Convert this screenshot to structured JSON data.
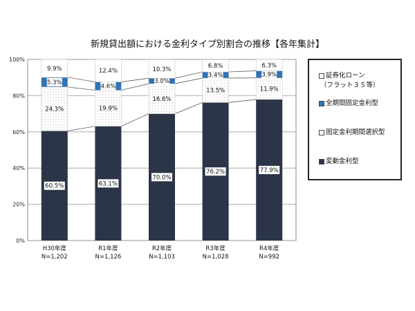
{
  "chart_data": {
    "type": "bar",
    "stacked": true,
    "title": "新規貸出額における金利タイプ別割合の推移【各年集計】",
    "categories": [
      [
        "H30年度",
        "N=1,202"
      ],
      [
        "R1年度",
        "N=1,126"
      ],
      [
        "R2年度",
        "N=1,103"
      ],
      [
        "R3年度",
        "N=1,028"
      ],
      [
        "R4年度",
        "N=992"
      ]
    ],
    "ylim": [
      0,
      100
    ],
    "yticks": [
      "0%",
      "20%",
      "40%",
      "60%",
      "80%",
      "100%"
    ],
    "grid": true,
    "legend_position": "right",
    "series": [
      {
        "name": "変動金利型",
        "values": [
          60.5,
          63.1,
          70.0,
          76.2,
          77.9
        ],
        "color": "#2b3547"
      },
      {
        "name": "固定金利期間選択型",
        "values": [
          24.3,
          19.9,
          16.6,
          13.5,
          11.9
        ],
        "color": "#ffffff",
        "pattern": "dots"
      },
      {
        "name": "全期間固定金利型",
        "values": [
          5.3,
          4.6,
          3.0,
          3.4,
          3.9
        ],
        "color": "#2e74b5"
      },
      {
        "name": "証券化ローン",
        "name_line2": "（フラット３５等）",
        "values": [
          9.9,
          12.4,
          10.3,
          6.8,
          6.3
        ],
        "color": "#ffffff"
      }
    ]
  }
}
